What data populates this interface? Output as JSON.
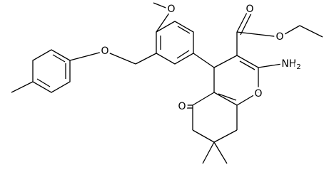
{
  "molecule": {
    "labels": {
      "methoxy_oxygen": "O",
      "ether_oxygen": "O",
      "ester_carbonyl_oxygen": "O",
      "ester_oxygen": "O",
      "ketone_oxygen": "O",
      "ring_oxygen": "O",
      "amine": {
        "text": "NH",
        "subscript": "2"
      }
    }
  }
}
